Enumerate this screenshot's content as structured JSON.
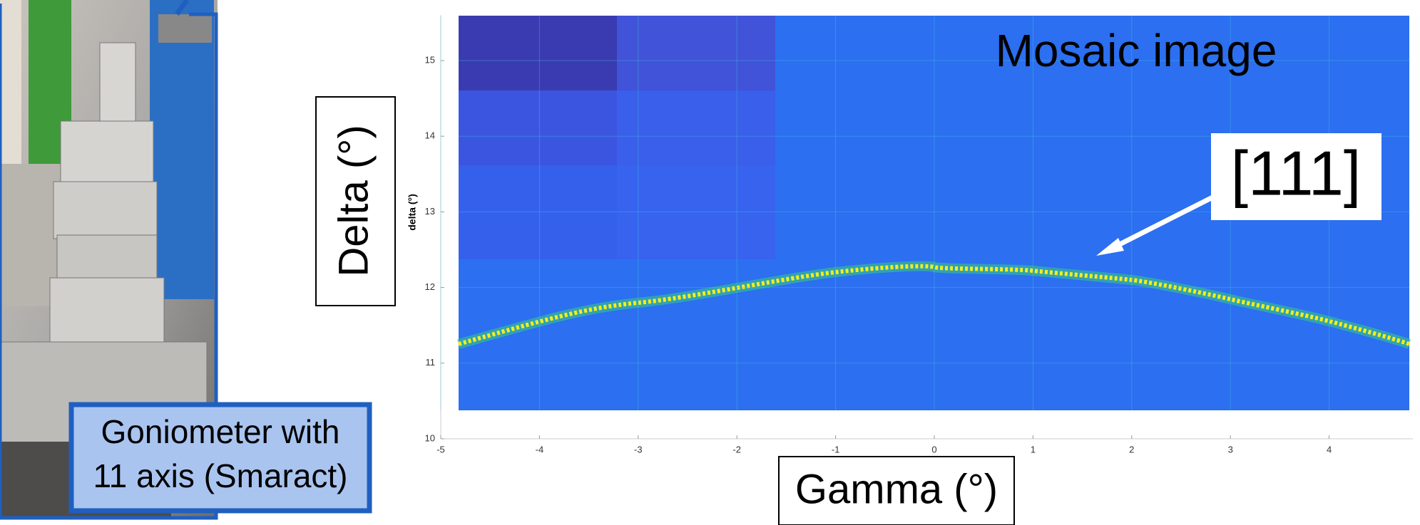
{
  "chart_data": {
    "type": "mosaic",
    "title": "Mosaic image",
    "xlabel": "Gamma (°)",
    "ylabel": "Delta (°)",
    "ylabel_small": "delta (°)",
    "annotation": "[111]",
    "photo_caption": [
      "Goniometer with",
      "11 axis (Smaract)"
    ],
    "xlim": [
      -5,
      4.85
    ],
    "ylim": [
      10,
      15.6
    ],
    "xticks": [
      -5,
      -4,
      -3,
      -2,
      -1,
      0,
      1,
      2,
      3,
      4
    ],
    "yticks": [
      10,
      11,
      12,
      13,
      14,
      15
    ],
    "grid": true
  }
}
